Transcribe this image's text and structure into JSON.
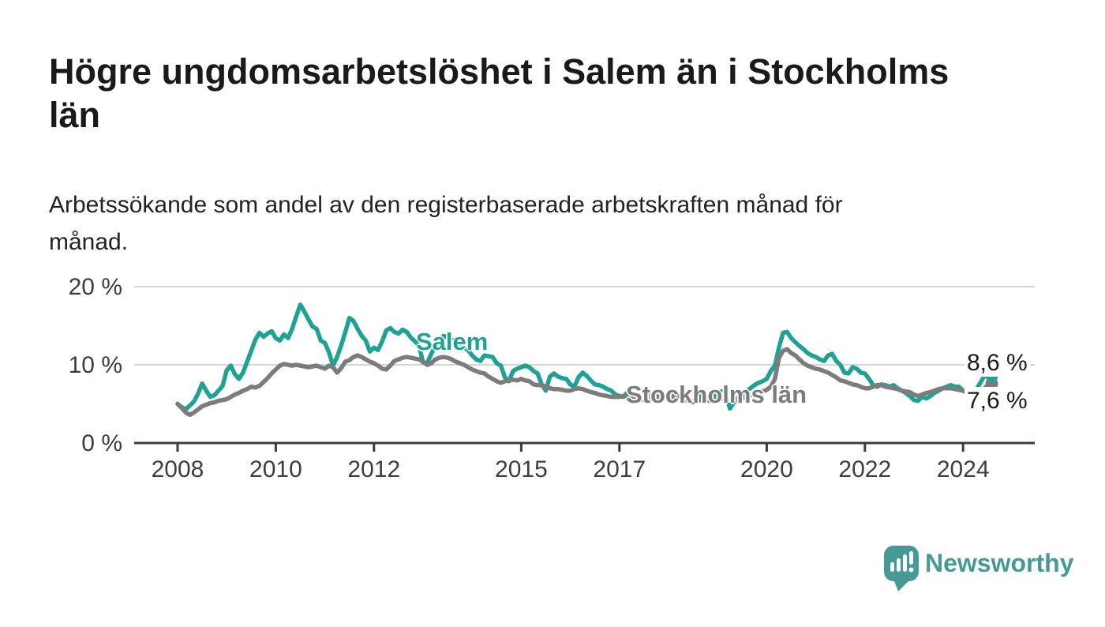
{
  "header": {
    "title": "Högre ungdomsarbetslöshet i Salem än i Stockholms län",
    "title_lines": [
      "Högre ungdomsarbetslöshet i Salem än i Stockholms",
      "län"
    ],
    "subtitle": "Arbetssökande som andel av den registerbaserade arbetskraften månad för månad.",
    "subtitle_lines": [
      "Arbetssökande som andel av den registerbaserade arbetskraften månad för",
      "månad."
    ]
  },
  "chart": {
    "y_axis": {
      "ticks": [
        {
          "label": "0 %",
          "value": 0
        },
        {
          "label": "10 %",
          "value": 10
        },
        {
          "label": "20 %",
          "value": 20
        }
      ]
    },
    "x_axis": {
      "ticks": [
        {
          "label": "2008",
          "year": 2008
        },
        {
          "label": "2010",
          "year": 2010
        },
        {
          "label": "2012",
          "year": 2012
        },
        {
          "label": "2015",
          "year": 2015
        },
        {
          "label": "2017",
          "year": 2017
        },
        {
          "label": "2020",
          "year": 2020
        },
        {
          "label": "2022",
          "year": 2022
        },
        {
          "label": "2024",
          "year": 2024
        }
      ]
    },
    "series_labels": {
      "salem": "Salem",
      "stockholm": "Stockholms län"
    },
    "end_labels": {
      "salem": "8,6 %",
      "stockholm": "7,6 %"
    },
    "colors": {
      "salem": "#1fa294",
      "stockholm": "#7c7c7c",
      "axis": "#3b3b3b",
      "grid": "#d6d6d6",
      "tick_text": "#3d3d3d",
      "end_label": "#1a1a1a",
      "brand": "#459a94"
    }
  },
  "chart_data": {
    "type": "line",
    "title": "Högre ungdomsarbetslöshet i Salem än i Stockholms län",
    "subtitle": "Arbetssökande som andel av den registerbaserade arbetskraften månad för månad.",
    "unit": "%",
    "frequency": "monthly",
    "x_start": "2008-01",
    "x_end": "2024-08",
    "ylim": [
      0,
      20
    ],
    "ytick_labels": [
      "0 %",
      "10 %",
      "20 %"
    ],
    "xtick_labels": [
      "2008",
      "2010",
      "2012",
      "2015",
      "2017",
      "2020",
      "2022",
      "2024"
    ],
    "grid": "horizontal",
    "legend": "inline-labels",
    "series": [
      {
        "name": "Salem",
        "color": "#1fa294",
        "end_label": "8,6 %",
        "last_value": 8.6,
        "values": [
          5.0,
          4.6,
          4.3,
          4.8,
          5.3,
          6.3,
          7.6,
          6.7,
          5.9,
          6.1,
          6.7,
          7.3,
          9.3,
          9.9,
          8.8,
          8.2,
          9.0,
          10.4,
          11.8,
          13.2,
          14.1,
          13.6,
          14.0,
          14.3,
          13.4,
          13.1,
          13.9,
          13.4,
          14.6,
          16.2,
          17.7,
          16.8,
          15.8,
          14.9,
          14.6,
          13.1,
          12.8,
          11.6,
          9.9,
          11.0,
          12.5,
          14.2,
          16.0,
          15.6,
          14.6,
          13.7,
          13.1,
          11.7,
          12.2,
          11.9,
          13.0,
          14.4,
          14.7,
          14.2,
          14.0,
          14.5,
          14.2,
          13.5,
          13.0,
          12.5,
          10.3,
          10.2,
          11.4,
          12.4,
          13.0,
          13.7,
          13.5,
          13.2,
          13.1,
          12.5,
          12.2,
          11.9,
          11.2,
          10.7,
          10.5,
          11.2,
          11.1,
          11.0,
          10.2,
          9.9,
          8.4,
          7.9,
          9.2,
          9.5,
          9.7,
          9.9,
          9.7,
          9.2,
          8.9,
          7.5,
          6.7,
          8.5,
          8.9,
          8.5,
          8.3,
          8.2,
          7.5,
          7.2,
          8.4,
          9.0,
          8.6,
          8.0,
          7.5,
          7.4,
          7.2,
          6.9,
          6.7,
          6.2,
          6.0,
          5.9,
          6.5,
          6.3,
          6.0,
          5.7,
          5.5,
          6.0,
          6.2,
          6.0,
          5.8,
          5.9,
          6.2,
          6.5,
          6.3,
          6.0,
          5.7,
          5.4,
          5.2,
          5.8,
          6.0,
          5.9,
          5.8,
          6.0,
          6.4,
          6.6,
          6.2,
          4.4,
          5.2,
          5.8,
          6.2,
          6.6,
          7.0,
          7.4,
          7.7,
          7.9,
          8.2,
          9.2,
          9.9,
          12.2,
          14.1,
          14.2,
          13.4,
          12.9,
          12.4,
          12.0,
          11.5,
          11.2,
          11.0,
          10.7,
          10.5,
          11.2,
          11.4,
          10.5,
          10.0,
          9.0,
          8.9,
          9.7,
          9.5,
          9.0,
          8.9,
          8.2,
          7.4,
          7.2,
          7.5,
          7.4,
          7.2,
          7.4,
          7.0,
          6.7,
          6.4,
          6.0,
          5.5,
          5.4,
          5.9,
          5.7,
          6.0,
          6.4,
          6.7,
          7.0,
          7.2,
          7.4,
          7.2,
          7.2,
          6.7,
          6.4,
          6.2,
          6.7,
          7.5,
          8.4,
          8.9,
          8.6
        ]
      },
      {
        "name": "Stockholms län",
        "color": "#7c7c7c",
        "end_label": "7,6 %",
        "last_value": 7.6,
        "values": [
          5.0,
          4.5,
          3.9,
          3.6,
          3.9,
          4.3,
          4.7,
          4.9,
          5.1,
          5.2,
          5.4,
          5.5,
          5.6,
          5.9,
          6.2,
          6.4,
          6.7,
          6.9,
          7.2,
          7.1,
          7.3,
          7.8,
          8.3,
          8.9,
          9.4,
          9.9,
          10.1,
          10.0,
          9.9,
          10.0,
          9.9,
          9.8,
          9.7,
          9.8,
          9.9,
          9.7,
          9.5,
          9.9,
          9.7,
          9.0,
          9.6,
          10.4,
          10.6,
          11.0,
          11.2,
          11.0,
          10.7,
          10.4,
          10.2,
          9.9,
          9.5,
          9.4,
          9.9,
          10.5,
          10.7,
          10.9,
          11.0,
          10.9,
          10.8,
          10.7,
          10.4,
          10.0,
          10.2,
          10.7,
          10.9,
          11.0,
          10.9,
          10.7,
          10.4,
          10.2,
          10.0,
          9.7,
          9.4,
          9.2,
          9.0,
          8.9,
          8.5,
          8.2,
          7.9,
          7.7,
          7.9,
          8.0,
          8.1,
          8.0,
          8.2,
          8.0,
          7.9,
          7.5,
          7.4,
          7.4,
          7.2,
          7.0,
          6.9,
          6.9,
          6.8,
          6.7,
          6.7,
          6.9,
          7.0,
          6.9,
          6.7,
          6.5,
          6.4,
          6.2,
          6.1,
          6.0,
          5.9,
          5.9,
          5.9,
          6.0,
          6.0,
          5.9,
          5.8,
          5.7,
          5.6,
          5.7,
          5.8,
          5.8,
          5.7,
          5.7,
          5.8,
          5.9,
          5.8,
          5.6,
          5.5,
          5.4,
          5.3,
          5.4,
          5.5,
          5.5,
          5.4,
          5.5,
          5.6,
          5.7,
          5.6,
          5.5,
          5.4,
          5.5,
          5.7,
          5.9,
          6.1,
          6.3,
          6.5,
          6.6,
          6.8,
          7.2,
          8.2,
          10.9,
          11.8,
          12.0,
          11.5,
          11.2,
          10.7,
          10.2,
          9.9,
          9.7,
          9.5,
          9.4,
          9.2,
          9.0,
          8.7,
          8.4,
          8.0,
          7.9,
          7.7,
          7.5,
          7.4,
          7.2,
          7.0,
          7.0,
          7.2,
          7.4,
          7.4,
          7.2,
          7.1,
          7.0,
          6.9,
          6.7,
          6.6,
          6.5,
          6.2,
          6.0,
          6.2,
          6.4,
          6.5,
          6.7,
          6.9,
          7.0,
          7.0,
          7.0,
          6.9,
          6.8,
          6.7,
          6.5,
          6.4,
          6.4,
          6.5,
          6.9,
          7.4,
          7.6
        ]
      }
    ]
  },
  "footer": {
    "brand": "Newsworthy"
  }
}
